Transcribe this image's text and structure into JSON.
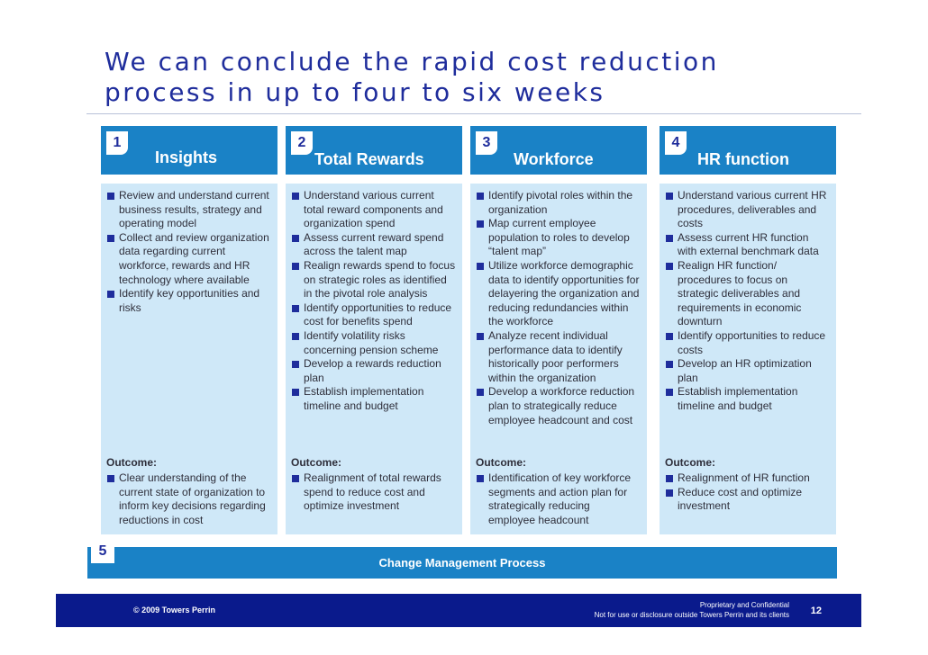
{
  "title_line1": "We can conclude the rapid cost reduction",
  "title_line2": "process in up to four to six weeks",
  "columns": [
    {
      "num": "1",
      "heading": "Insights",
      "bullets": [
        "Review and understand current business results, strategy and operating model",
        "Collect and review organization data regarding current workforce, rewards and HR technology where available",
        "Identify key opportunities and risks"
      ],
      "outcome_label": "Outcome:",
      "outcome": [
        "Clear understanding of the current state of organization to inform key decisions regarding reductions in cost"
      ]
    },
    {
      "num": "2",
      "heading": "Total Rewards",
      "bullets": [
        "Understand various current total reward components and organization spend",
        "Assess current reward spend across the talent map",
        "Realign rewards spend to focus on strategic roles as identified in the pivotal role analysis",
        "Identify opportunities to reduce cost for benefits spend",
        "Identify volatility risks concerning pension scheme",
        "Develop a rewards reduction plan",
        "Establish implementation timeline and budget"
      ],
      "outcome_label": "Outcome:",
      "outcome": [
        "Realignment of total rewards spend to reduce cost and optimize investment"
      ]
    },
    {
      "num": "3",
      "heading": "Workforce",
      "bullets": [
        "Identify pivotal roles within the organization",
        "Map current employee population to roles to develop “talent map”",
        "Utilize workforce demographic data to identify opportunities for delayering the organization and reducing redundancies within the workforce",
        "Analyze recent individual performance data to identify historically poor performers within the organization",
        "Develop a workforce reduction plan to strategically reduce employee headcount and cost"
      ],
      "outcome_label": "Outcome:",
      "outcome": [
        "Identification of key workforce segments and action plan for strategically reducing employee headcount"
      ]
    },
    {
      "num": "4",
      "heading": "HR function",
      "bullets": [
        "Understand various current HR procedures, deliverables and costs",
        "Assess current HR function with external benchmark data",
        "Realign HR function/ procedures to focus on strategic deliverables and requirements in economic downturn",
        "Identify opportunities to reduce costs",
        "Develop an HR optimization plan",
        "Establish implementation timeline and budget"
      ],
      "outcome_label": "Outcome:",
      "outcome": [
        "Realignment of HR function",
        "Reduce cost and optimize investment"
      ]
    }
  ],
  "change_mgmt": {
    "num": "5",
    "label": "Change Management Process"
  },
  "footer": {
    "copyright": "© 2009 Towers Perrin",
    "line1": "Proprietary and Confidential",
    "line2": "Not for use or disclosure outside Towers Perrin and its clients",
    "page": "12"
  },
  "colors": {
    "title": "#1f2d9c",
    "header_blue": "#1a82c6",
    "panel_bg": "#cfe8f8",
    "footer_navy": "#0a1a8c"
  }
}
